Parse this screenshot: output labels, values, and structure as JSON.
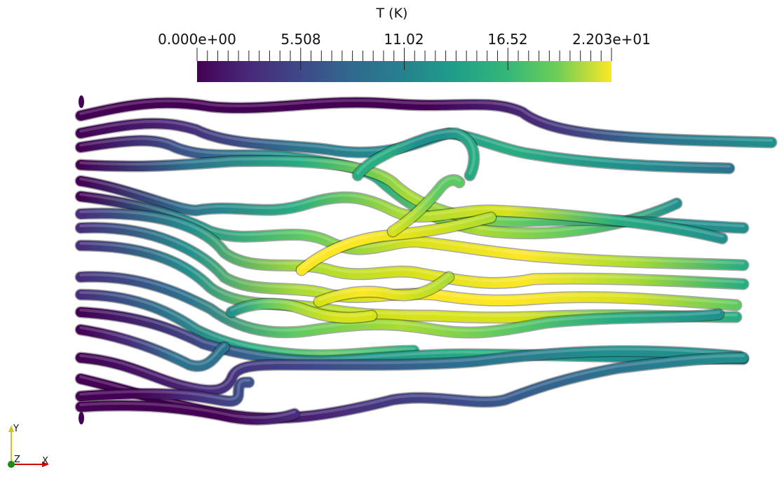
{
  "colorbar": {
    "title": "T (K)",
    "tick_labels": [
      "0.000e+00",
      "5.508",
      "11.02",
      "16.52",
      "2.203e+01"
    ],
    "colormap": "viridis",
    "range": [
      0,
      22.03
    ]
  },
  "orientation_axes": {
    "y_label": "Y",
    "z_label": "Z",
    "x_label": "X",
    "x_color": "#cc0000",
    "y_color": "#d4c21a",
    "z_color": "#1a8a1a"
  },
  "colors": {
    "background": "#ffffff",
    "viridis": [
      "#440154",
      "#3b528b",
      "#21908d",
      "#5dc963",
      "#fde725"
    ]
  }
}
